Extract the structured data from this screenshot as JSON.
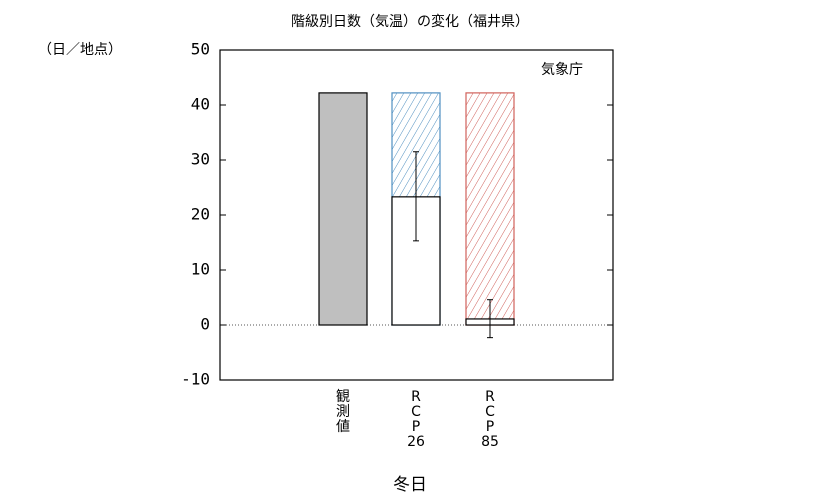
{
  "chart_data": {
    "type": "bar",
    "title": "階級別日数（気温）の変化（福井県）",
    "y_unit": "（日／地点）",
    "annotation": "気象庁",
    "xlabel": "冬日",
    "categories": [
      "観測値",
      "RCP26",
      "RCP85"
    ],
    "values": [
      42.2,
      23.3,
      1.1
    ],
    "colors": [
      "#bfbfbf",
      "#ffffff",
      "#ffffff"
    ],
    "reference": [
      null,
      42.2,
      42.2
    ],
    "hatch_colors": [
      null,
      "#4f8fc0",
      "#d0605a"
    ],
    "error_low": [
      null,
      15.3,
      -2.3
    ],
    "error_high": [
      null,
      31.5,
      4.6
    ],
    "ylim": [
      -10,
      50
    ],
    "yticks": [
      -10,
      0,
      10,
      20,
      30,
      40,
      50
    ],
    "zero_line": true
  }
}
